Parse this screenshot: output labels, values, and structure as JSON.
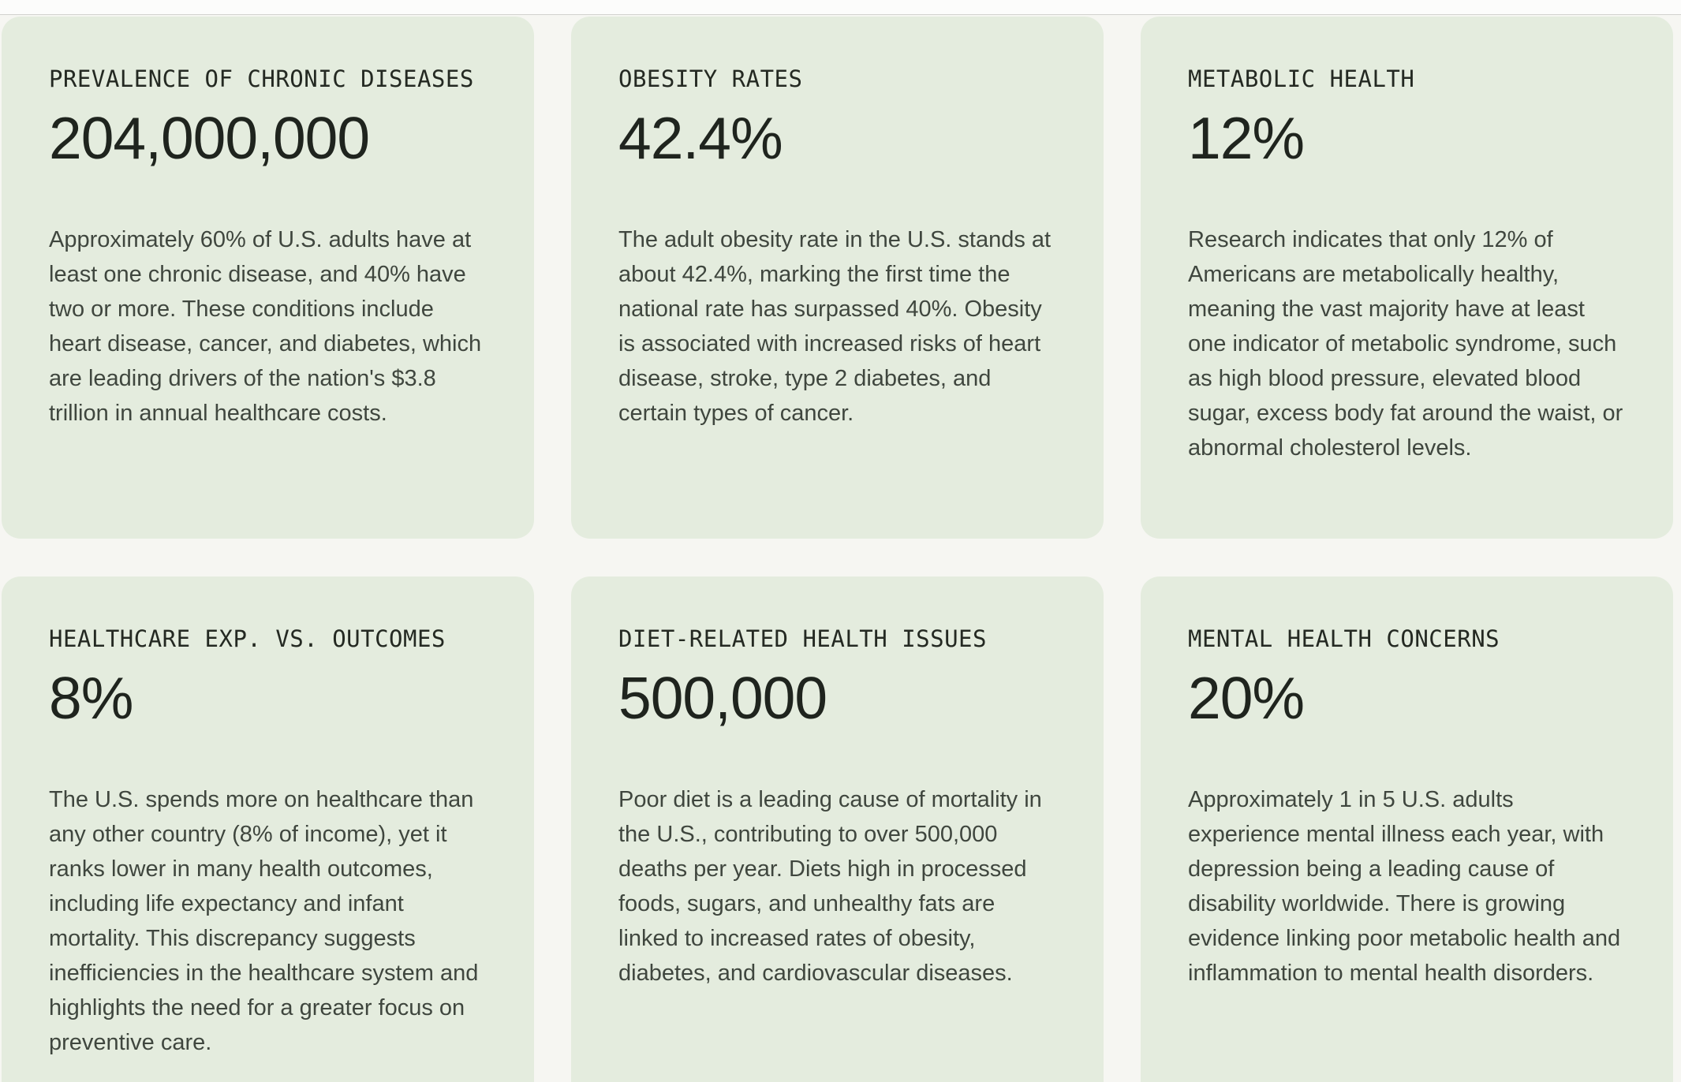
{
  "page": {
    "background_color": "#f6f6f2",
    "top_strip_color": "#fcfcfb",
    "card_background_color": "#e4ecde",
    "heading_text_color": "#1f241e",
    "body_text_color": "#3f463e"
  },
  "cards": [
    {
      "label": "PREVALENCE OF CHRONIC DISEASES",
      "value": "204,000,000",
      "description": "Approximately 60% of U.S. adults have at least one chronic disease, and 40% have two or more. These conditions include heart disease, cancer, and diabetes, which are leading drivers of the nation's $3.8 trillion in annual healthcare costs."
    },
    {
      "label": "OBESITY RATES",
      "value": "42.4%",
      "description": "The adult obesity rate in the U.S. stands at about 42.4%, marking the first time the national rate has surpassed 40%. Obesity is associated with increased risks of heart disease, stroke, type 2 diabetes, and certain types of cancer."
    },
    {
      "label": "METABOLIC HEALTH",
      "value": "12%",
      "description": "Research indicates that only 12% of Americans are metabolically healthy, meaning the vast majority have at least one indicator of metabolic syndrome, such as high blood pressure, elevated blood sugar, excess body fat around the waist, or abnormal cholesterol levels."
    },
    {
      "label": "HEALTHCARE EXP. VS. OUTCOMES",
      "value": "8%",
      "description": "The U.S. spends more on healthcare than any other country (8% of income), yet it ranks lower in many health outcomes, including life expectancy and infant mortality. This discrepancy suggests inefficiencies in the healthcare system and highlights the need for a greater focus on preventive care."
    },
    {
      "label": "DIET-RELATED HEALTH ISSUES",
      "value": "500,000",
      "description": "Poor diet is a leading cause of mortality in the U.S., contributing to over 500,000 deaths per year. Diets high in processed foods, sugars, and unhealthy fats are linked to increased rates of obesity, diabetes, and cardiovascular diseases."
    },
    {
      "label": "MENTAL HEALTH CONCERNS",
      "value": "20%",
      "description": "Approximately 1 in 5 U.S. adults experience mental illness each year, with depression being a leading cause of disability worldwide. There is growing evidence linking poor metabolic health and inflammation to mental health disorders."
    }
  ]
}
